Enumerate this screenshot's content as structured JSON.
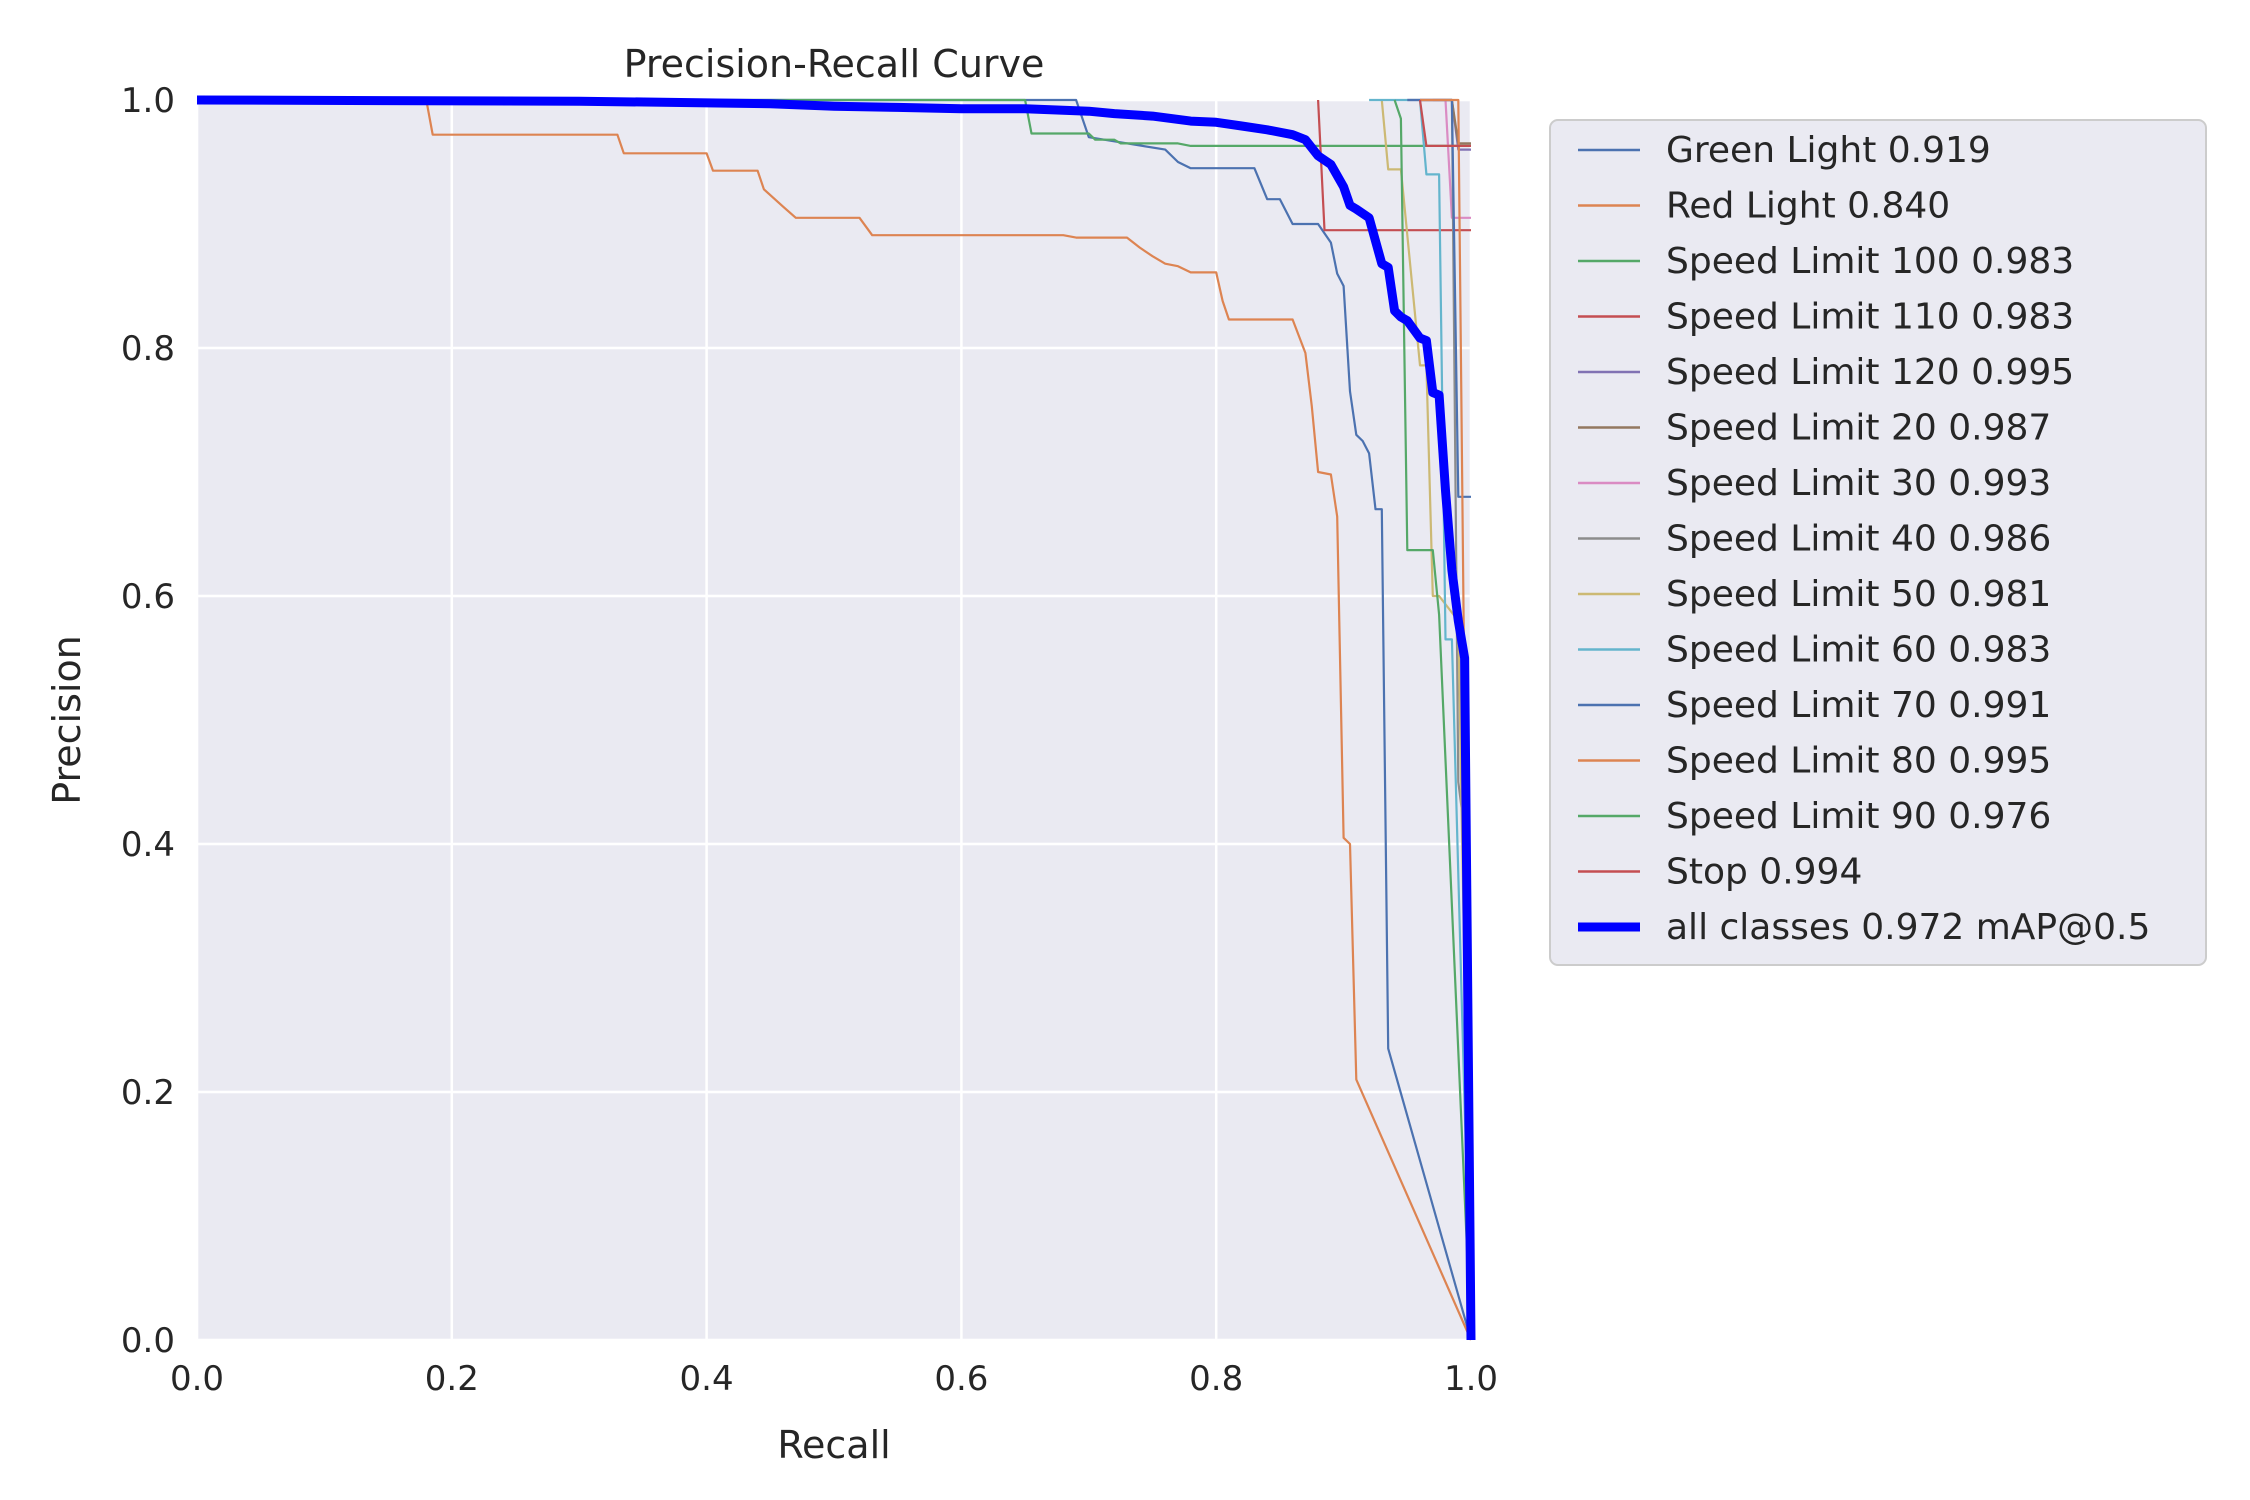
{
  "chart_data": {
    "type": "line",
    "title": "Precision-Recall Curve",
    "xlabel": "Recall",
    "ylabel": "Precision",
    "xlim": [
      0,
      1
    ],
    "ylim": [
      0,
      1
    ],
    "x_ticks": [
      "0.0",
      "0.2",
      "0.4",
      "0.6",
      "0.8",
      "1.0"
    ],
    "y_ticks": [
      "0.0",
      "0.2",
      "0.4",
      "0.6",
      "0.8",
      "1.0"
    ],
    "grid": true,
    "background": "#eaeaf2",
    "legend_position": "outside-right",
    "series": [
      {
        "name": "Green Light 0.919",
        "color": "#4c72b0",
        "x": [
          0,
          0.69,
          0.7,
          0.76,
          0.77,
          0.78,
          0.79,
          0.83,
          0.84,
          0.85,
          0.86,
          0.88,
          0.89,
          0.895,
          0.9,
          0.905,
          0.91,
          0.915,
          0.92,
          0.925,
          0.93,
          0.935,
          1.0
        ],
        "y": [
          1.0,
          1.0,
          0.97,
          0.96,
          0.95,
          0.945,
          0.945,
          0.945,
          0.92,
          0.92,
          0.9,
          0.9,
          0.885,
          0.86,
          0.85,
          0.765,
          0.73,
          0.725,
          0.715,
          0.67,
          0.67,
          0.235,
          0.0
        ]
      },
      {
        "name": "Red Light 0.840",
        "color": "#dd8452",
        "x": [
          0,
          0.18,
          0.185,
          0.33,
          0.335,
          0.4,
          0.405,
          0.44,
          0.445,
          0.46,
          0.47,
          0.52,
          0.53,
          0.68,
          0.69,
          0.73,
          0.74,
          0.75,
          0.76,
          0.77,
          0.78,
          0.8,
          0.805,
          0.81,
          0.86,
          0.87,
          0.875,
          0.88,
          0.89,
          0.895,
          0.9,
          0.905,
          0.91,
          1.0
        ],
        "y": [
          1.0,
          1.0,
          0.972,
          0.972,
          0.957,
          0.957,
          0.943,
          0.943,
          0.928,
          0.914,
          0.905,
          0.905,
          0.891,
          0.891,
          0.889,
          0.889,
          0.881,
          0.874,
          0.868,
          0.866,
          0.861,
          0.861,
          0.838,
          0.823,
          0.823,
          0.796,
          0.753,
          0.7,
          0.698,
          0.664,
          0.405,
          0.4,
          0.21,
          0.0
        ]
      },
      {
        "name": "Speed Limit 100 0.983",
        "color": "#55a868",
        "x": [
          0,
          0.65,
          0.655,
          0.7,
          0.705,
          0.72,
          0.725,
          0.77,
          0.78,
          1.0
        ],
        "y": [
          1.0,
          1.0,
          0.973,
          0.973,
          0.968,
          0.968,
          0.965,
          0.965,
          0.963,
          0.963
        ]
      },
      {
        "name": "Speed Limit 110 0.983",
        "color": "#c44e52",
        "x": [
          0.88,
          0.885,
          1.0
        ],
        "y": [
          1.0,
          0.895,
          0.895
        ]
      },
      {
        "name": "Speed Limit 120 0.995",
        "color": "#8172b3",
        "x": [
          0.97,
          0.985,
          0.99,
          1.0
        ],
        "y": [
          1.0,
          1.0,
          0.96,
          0.96
        ]
      },
      {
        "name": "Speed Limit 20 0.987",
        "color": "#937860",
        "x": [
          0.96,
          0.985,
          0.99,
          1.0
        ],
        "y": [
          1.0,
          1.0,
          0.965,
          0.965
        ]
      },
      {
        "name": "Speed Limit 30 0.993",
        "color": "#da8bc3",
        "x": [
          0.95,
          0.98,
          0.985,
          1.0
        ],
        "y": [
          1.0,
          1.0,
          0.905,
          0.905
        ]
      },
      {
        "name": "Speed Limit 40 0.986",
        "color": "#8c8c8c",
        "x": [
          0.96,
          0.985,
          0.99,
          0.995,
          1.0
        ],
        "y": [
          1.0,
          1.0,
          0.45,
          0.41,
          0.0
        ]
      },
      {
        "name": "Speed Limit 50 0.981",
        "color": "#ccb974",
        "x": [
          0.93,
          0.935,
          0.945,
          0.96,
          0.965,
          0.97,
          0.975,
          0.99,
          1.0
        ],
        "y": [
          1.0,
          0.944,
          0.944,
          0.786,
          0.786,
          0.6,
          0.6,
          0.58,
          0.0
        ]
      },
      {
        "name": "Speed Limit 60 0.983",
        "color": "#64b5cd",
        "x": [
          0.92,
          0.96,
          0.965,
          0.975,
          0.98,
          0.985,
          1.0
        ],
        "y": [
          1.0,
          1.0,
          0.94,
          0.94,
          0.565,
          0.565,
          0.0
        ]
      },
      {
        "name": "Speed Limit 70 0.991",
        "color": "#4c72b0",
        "x": [
          0.95,
          0.985,
          0.99,
          1.0
        ],
        "y": [
          1.0,
          1.0,
          0.68,
          0.68
        ]
      },
      {
        "name": "Speed Limit 80 0.995",
        "color": "#dd8452",
        "x": [
          0.96,
          0.99,
          1.0
        ],
        "y": [
          1.0,
          1.0,
          0.0
        ]
      },
      {
        "name": "Speed Limit 90 0.976",
        "color": "#55a868",
        "x": [
          0.94,
          0.945,
          0.95,
          0.97,
          0.975,
          1.0
        ],
        "y": [
          1.0,
          0.985,
          0.637,
          0.637,
          0.585,
          0.0
        ]
      },
      {
        "name": "Stop 0.994",
        "color": "#c44e52",
        "x": [
          0.96,
          0.965,
          0.97,
          0.98,
          0.99,
          1.0
        ],
        "y": [
          1.0,
          0.963,
          0.963,
          0.963,
          0.963,
          0.963
        ]
      },
      {
        "name": "all classes 0.972 mAP@0.5",
        "color": "#0000ff",
        "thick": true,
        "x": [
          0,
          0.3,
          0.45,
          0.5,
          0.55,
          0.6,
          0.65,
          0.7,
          0.72,
          0.75,
          0.78,
          0.8,
          0.82,
          0.84,
          0.86,
          0.87,
          0.88,
          0.89,
          0.9,
          0.905,
          0.91,
          0.92,
          0.93,
          0.935,
          0.94,
          0.945,
          0.95,
          0.96,
          0.965,
          0.97,
          0.975,
          0.98,
          0.985,
          0.99,
          0.995,
          1.0
        ],
        "y": [
          1.0,
          0.999,
          0.997,
          0.995,
          0.994,
          0.993,
          0.993,
          0.991,
          0.989,
          0.987,
          0.983,
          0.982,
          0.979,
          0.976,
          0.972,
          0.968,
          0.955,
          0.948,
          0.93,
          0.915,
          0.912,
          0.905,
          0.868,
          0.865,
          0.83,
          0.825,
          0.822,
          0.808,
          0.806,
          0.764,
          0.762,
          0.685,
          0.621,
          0.58,
          0.55,
          0.0
        ]
      }
    ]
  }
}
